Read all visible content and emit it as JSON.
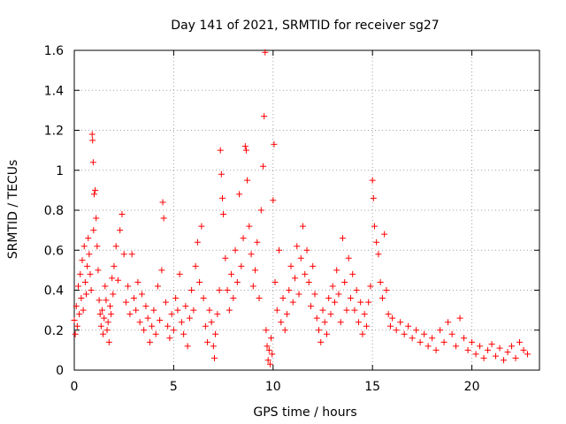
{
  "chart_data": {
    "type": "scatter",
    "title": "Day 141 of 2021, SRMTID for receiver sg27",
    "xlabel": "GPS time / hours",
    "ylabel": "SRMTID / TECUs",
    "xlim": [
      0,
      23.4
    ],
    "ylim": [
      0,
      1.6
    ],
    "grid": true,
    "marker": "plus",
    "color": "#ff0000",
    "legend": "none",
    "x_ticks": [
      {
        "value": 0,
        "label": "0"
      },
      {
        "value": 5,
        "label": "5"
      },
      {
        "value": 10,
        "label": "10"
      },
      {
        "value": 15,
        "label": "15"
      },
      {
        "value": 20,
        "label": "20"
      }
    ],
    "y_ticks": [
      {
        "value": 0,
        "label": "0"
      },
      {
        "value": 0.2,
        "label": "0.2"
      },
      {
        "value": 0.4,
        "label": "0.4"
      },
      {
        "value": 0.6,
        "label": "0.6"
      },
      {
        "value": 0.8,
        "label": "0.8"
      },
      {
        "value": 1.0,
        "label": "1"
      },
      {
        "value": 1.2,
        "label": "1.2"
      },
      {
        "value": 1.4,
        "label": "1.4"
      },
      {
        "value": 1.6,
        "label": "1.6"
      }
    ],
    "series": [
      {
        "name": "SRMTID",
        "points": [
          [
            0.0,
            0.25
          ],
          [
            0.05,
            0.18
          ],
          [
            0.1,
            0.32
          ],
          [
            0.15,
            0.22
          ],
          [
            0.2,
            0.42
          ],
          [
            0.25,
            0.28
          ],
          [
            0.3,
            0.48
          ],
          [
            0.35,
            0.36
          ],
          [
            0.4,
            0.55
          ],
          [
            0.45,
            0.3
          ],
          [
            0.5,
            0.62
          ],
          [
            0.55,
            0.44
          ],
          [
            0.6,
            0.38
          ],
          [
            0.65,
            0.52
          ],
          [
            0.7,
            0.66
          ],
          [
            0.75,
            0.58
          ],
          [
            0.8,
            0.48
          ],
          [
            0.85,
            0.4
          ],
          [
            0.9,
            1.18
          ],
          [
            0.92,
            1.15
          ],
          [
            0.95,
            1.04
          ],
          [
            0.97,
            0.7
          ],
          [
            1.0,
            0.88
          ],
          [
            1.05,
            0.9
          ],
          [
            1.1,
            0.76
          ],
          [
            1.15,
            0.62
          ],
          [
            1.2,
            0.5
          ],
          [
            1.25,
            0.35
          ],
          [
            1.3,
            0.28
          ],
          [
            1.35,
            0.22
          ],
          [
            1.4,
            0.3
          ],
          [
            1.45,
            0.18
          ],
          [
            1.5,
            0.26
          ],
          [
            1.55,
            0.42
          ],
          [
            1.6,
            0.35
          ],
          [
            1.65,
            0.2
          ],
          [
            1.7,
            0.24
          ],
          [
            1.75,
            0.14
          ],
          [
            1.8,
            0.32
          ],
          [
            1.85,
            0.28
          ],
          [
            1.9,
            0.46
          ],
          [
            1.95,
            0.38
          ],
          [
            2.0,
            0.52
          ],
          [
            2.1,
            0.62
          ],
          [
            2.2,
            0.45
          ],
          [
            2.3,
            0.7
          ],
          [
            2.4,
            0.78
          ],
          [
            2.5,
            0.58
          ],
          [
            2.6,
            0.34
          ],
          [
            2.7,
            0.42
          ],
          [
            2.8,
            0.28
          ],
          [
            2.9,
            0.58
          ],
          [
            3.0,
            0.36
          ],
          [
            3.1,
            0.3
          ],
          [
            3.2,
            0.44
          ],
          [
            3.3,
            0.24
          ],
          [
            3.4,
            0.38
          ],
          [
            3.5,
            0.2
          ],
          [
            3.6,
            0.32
          ],
          [
            3.7,
            0.26
          ],
          [
            3.8,
            0.14
          ],
          [
            3.9,
            0.22
          ],
          [
            4.0,
            0.3
          ],
          [
            4.1,
            0.18
          ],
          [
            4.2,
            0.42
          ],
          [
            4.3,
            0.25
          ],
          [
            4.4,
            0.5
          ],
          [
            4.45,
            0.84
          ],
          [
            4.5,
            0.76
          ],
          [
            4.6,
            0.34
          ],
          [
            4.7,
            0.22
          ],
          [
            4.8,
            0.16
          ],
          [
            4.9,
            0.28
          ],
          [
            5.0,
            0.2
          ],
          [
            5.1,
            0.36
          ],
          [
            5.2,
            0.3
          ],
          [
            5.3,
            0.48
          ],
          [
            5.4,
            0.24
          ],
          [
            5.5,
            0.18
          ],
          [
            5.6,
            0.32
          ],
          [
            5.7,
            0.12
          ],
          [
            5.8,
            0.26
          ],
          [
            5.9,
            0.4
          ],
          [
            6.0,
            0.3
          ],
          [
            6.1,
            0.52
          ],
          [
            6.2,
            0.64
          ],
          [
            6.3,
            0.44
          ],
          [
            6.4,
            0.72
          ],
          [
            6.5,
            0.36
          ],
          [
            6.6,
            0.22
          ],
          [
            6.7,
            0.14
          ],
          [
            6.8,
            0.3
          ],
          [
            6.9,
            0.24
          ],
          [
            7.0,
            0.12
          ],
          [
            7.05,
            0.06
          ],
          [
            7.1,
            0.18
          ],
          [
            7.2,
            0.28
          ],
          [
            7.3,
            0.4
          ],
          [
            7.35,
            1.1
          ],
          [
            7.4,
            0.98
          ],
          [
            7.45,
            0.86
          ],
          [
            7.5,
            0.78
          ],
          [
            7.6,
            0.56
          ],
          [
            7.7,
            0.4
          ],
          [
            7.8,
            0.3
          ],
          [
            7.9,
            0.48
          ],
          [
            8.0,
            0.36
          ],
          [
            8.1,
            0.6
          ],
          [
            8.2,
            0.44
          ],
          [
            8.3,
            0.88
          ],
          [
            8.4,
            0.52
          ],
          [
            8.5,
            0.66
          ],
          [
            8.6,
            1.12
          ],
          [
            8.65,
            1.1
          ],
          [
            8.7,
            0.95
          ],
          [
            8.8,
            0.72
          ],
          [
            8.9,
            0.58
          ],
          [
            9.0,
            0.42
          ],
          [
            9.1,
            0.5
          ],
          [
            9.2,
            0.64
          ],
          [
            9.3,
            0.36
          ],
          [
            9.4,
            0.8
          ],
          [
            9.5,
            1.02
          ],
          [
            9.55,
            1.27
          ],
          [
            9.6,
            1.59
          ],
          [
            9.65,
            0.2
          ],
          [
            9.7,
            0.12
          ],
          [
            9.75,
            0.05
          ],
          [
            9.8,
            0.1
          ],
          [
            9.85,
            0.03
          ],
          [
            9.9,
            0.16
          ],
          [
            9.95,
            0.08
          ],
          [
            10.0,
            0.85
          ],
          [
            10.05,
            1.13
          ],
          [
            10.1,
            0.44
          ],
          [
            10.2,
            0.3
          ],
          [
            10.3,
            0.6
          ],
          [
            10.4,
            0.24
          ],
          [
            10.5,
            0.36
          ],
          [
            10.6,
            0.2
          ],
          [
            10.7,
            0.28
          ],
          [
            10.8,
            0.4
          ],
          [
            10.9,
            0.52
          ],
          [
            11.0,
            0.34
          ],
          [
            11.1,
            0.46
          ],
          [
            11.2,
            0.62
          ],
          [
            11.3,
            0.38
          ],
          [
            11.4,
            0.56
          ],
          [
            11.5,
            0.72
          ],
          [
            11.6,
            0.48
          ],
          [
            11.7,
            0.6
          ],
          [
            11.8,
            0.44
          ],
          [
            11.9,
            0.32
          ],
          [
            12.0,
            0.52
          ],
          [
            12.1,
            0.38
          ],
          [
            12.2,
            0.26
          ],
          [
            12.3,
            0.2
          ],
          [
            12.4,
            0.14
          ],
          [
            12.5,
            0.3
          ],
          [
            12.6,
            0.24
          ],
          [
            12.7,
            0.18
          ],
          [
            12.8,
            0.36
          ],
          [
            12.9,
            0.28
          ],
          [
            13.0,
            0.42
          ],
          [
            13.1,
            0.34
          ],
          [
            13.2,
            0.5
          ],
          [
            13.3,
            0.38
          ],
          [
            13.4,
            0.24
          ],
          [
            13.5,
            0.66
          ],
          [
            13.6,
            0.44
          ],
          [
            13.7,
            0.3
          ],
          [
            13.8,
            0.56
          ],
          [
            13.9,
            0.36
          ],
          [
            14.0,
            0.48
          ],
          [
            14.1,
            0.3
          ],
          [
            14.2,
            0.4
          ],
          [
            14.3,
            0.24
          ],
          [
            14.4,
            0.34
          ],
          [
            14.5,
            0.18
          ],
          [
            14.6,
            0.28
          ],
          [
            14.7,
            0.22
          ],
          [
            14.8,
            0.34
          ],
          [
            14.9,
            0.42
          ],
          [
            15.0,
            0.95
          ],
          [
            15.05,
            0.86
          ],
          [
            15.1,
            0.72
          ],
          [
            15.2,
            0.64
          ],
          [
            15.3,
            0.58
          ],
          [
            15.4,
            0.44
          ],
          [
            15.5,
            0.36
          ],
          [
            15.6,
            0.68
          ],
          [
            15.7,
            0.4
          ],
          [
            15.8,
            0.28
          ],
          [
            15.9,
            0.22
          ],
          [
            16.0,
            0.26
          ],
          [
            16.2,
            0.2
          ],
          [
            16.4,
            0.24
          ],
          [
            16.6,
            0.18
          ],
          [
            16.8,
            0.22
          ],
          [
            17.0,
            0.16
          ],
          [
            17.2,
            0.2
          ],
          [
            17.4,
            0.14
          ],
          [
            17.6,
            0.18
          ],
          [
            17.8,
            0.12
          ],
          [
            18.0,
            0.16
          ],
          [
            18.2,
            0.1
          ],
          [
            18.4,
            0.2
          ],
          [
            18.6,
            0.14
          ],
          [
            18.8,
            0.24
          ],
          [
            19.0,
            0.18
          ],
          [
            19.2,
            0.12
          ],
          [
            19.4,
            0.26
          ],
          [
            19.6,
            0.16
          ],
          [
            19.8,
            0.1
          ],
          [
            20.0,
            0.14
          ],
          [
            20.2,
            0.08
          ],
          [
            20.4,
            0.12
          ],
          [
            20.6,
            0.06
          ],
          [
            20.8,
            0.1
          ],
          [
            21.0,
            0.13
          ],
          [
            21.2,
            0.07
          ],
          [
            21.4,
            0.11
          ],
          [
            21.6,
            0.05
          ],
          [
            21.8,
            0.09
          ],
          [
            22.0,
            0.12
          ],
          [
            22.2,
            0.06
          ],
          [
            22.4,
            0.14
          ],
          [
            22.6,
            0.1
          ],
          [
            22.8,
            0.08
          ]
        ]
      }
    ]
  }
}
